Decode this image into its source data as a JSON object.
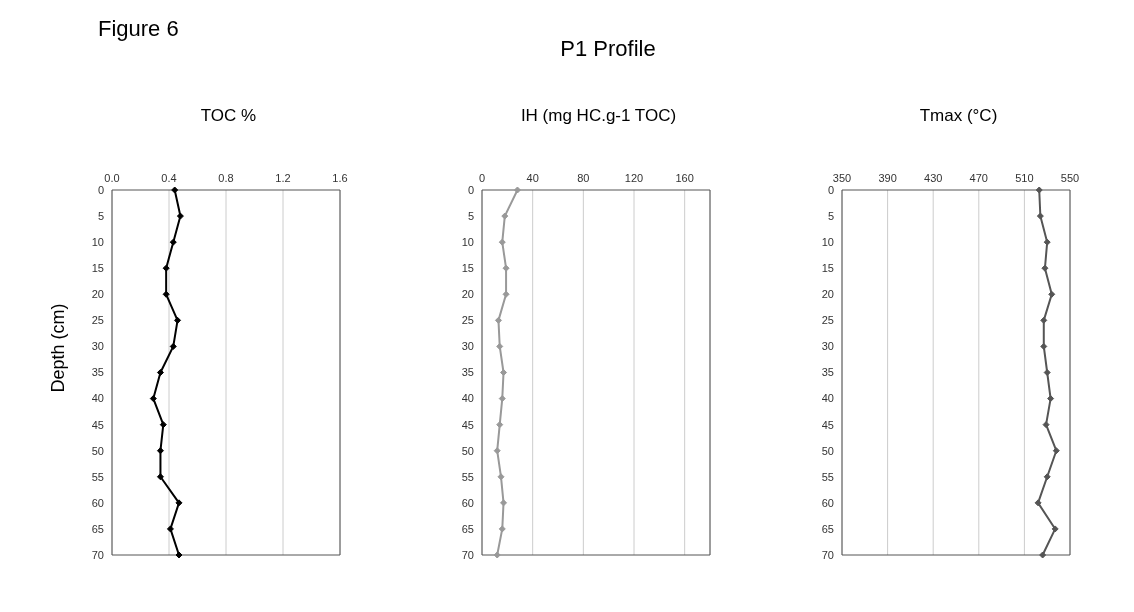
{
  "chart_data": [
    {
      "type": "line",
      "orientation": "horizontal",
      "annotations": [
        "Figure 6"
      ],
      "xlabel": "TOC %",
      "ylabel": "Depth (cm)",
      "categories": [
        "0",
        "5",
        "10",
        "15",
        "20",
        "25",
        "30",
        "35",
        "40",
        "45",
        "50",
        "55",
        "60",
        "65",
        "70"
      ],
      "series": [
        {
          "color": "#000000",
          "values": [
            0.44,
            0.48,
            0.43,
            0.38,
            0.38,
            0.46,
            0.43,
            0.34,
            0.29,
            0.36,
            0.34,
            0.34,
            0.47,
            0.41,
            0.47
          ]
        }
      ],
      "xlim": [
        0,
        1.6
      ],
      "xticks": [
        {
          "value": 0,
          "label": "0.0"
        },
        0.4,
        0.8,
        1.2,
        1.6
      ],
      "grid": "x",
      "marker": "diamond",
      "line_style": "solid"
    },
    {
      "type": "line",
      "orientation": "horizontal",
      "title": "P1 Profile",
      "xlabel": "IH (mg HC.g-1 TOC)",
      "categories": [
        "0",
        "5",
        "10",
        "15",
        "20",
        "25",
        "30",
        "35",
        "40",
        "45",
        "50",
        "55",
        "60",
        "65",
        "70"
      ],
      "series": [
        {
          "color": "#999999",
          "values": [
            28,
            18,
            16,
            19,
            19,
            13,
            14,
            17,
            16,
            14,
            12,
            15,
            17,
            16,
            12
          ]
        }
      ],
      "xlim": [
        0,
        180
      ],
      "xticks": [
        0,
        40,
        80,
        120,
        160
      ],
      "grid": "x",
      "marker": "diamond",
      "line_style": "solid"
    },
    {
      "type": "line",
      "orientation": "horizontal",
      "xlabel": "Tmax (°C)",
      "categories": [
        "0",
        "5",
        "10",
        "15",
        "20",
        "25",
        "30",
        "35",
        "40",
        "45",
        "50",
        "55",
        "60",
        "65",
        "70"
      ],
      "series": [
        {
          "color": "#555555",
          "values": [
            523,
            524,
            530,
            528,
            534,
            527,
            527,
            530,
            533,
            529,
            538,
            530,
            522,
            537,
            526
          ]
        }
      ],
      "xlim": [
        350,
        550
      ],
      "xticks": [
        350,
        390,
        430,
        470,
        510,
        550
      ],
      "grid": "x",
      "marker": "diamond",
      "line_style": "solid"
    }
  ]
}
